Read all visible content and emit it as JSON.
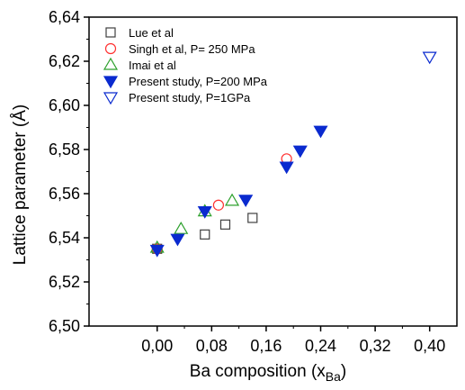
{
  "chart_data": {
    "type": "scatter",
    "xlabel": "Ba composition (x",
    "xlabel_sub": "Ba",
    "xlabel_close": ")",
    "ylabel": "Lattice parameter (Å)",
    "xlim": [
      -0.1,
      0.44
    ],
    "ylim": [
      6.5,
      6.64
    ],
    "xticks": [
      0.0,
      0.08,
      0.16,
      0.24,
      0.32,
      0.4
    ],
    "xtick_labels": [
      "0,00",
      "0,08",
      "0,16",
      "0,24",
      "0,32",
      "0,40"
    ],
    "yticks": [
      6.5,
      6.52,
      6.54,
      6.56,
      6.58,
      6.6,
      6.62,
      6.64
    ],
    "ytick_labels": [
      "6,50",
      "6,52",
      "6,54",
      "6,56",
      "6,58",
      "6,60",
      "6,62",
      "6,64"
    ],
    "grid": false,
    "legend_position": "top-left",
    "series": [
      {
        "name": "Lue et al",
        "marker": "square-open",
        "color": "#404040",
        "points": [
          [
            0.0,
            6.535
          ],
          [
            0.07,
            6.5415
          ],
          [
            0.1,
            6.546
          ],
          [
            0.14,
            6.549
          ]
        ]
      },
      {
        "name": "Singh et al, P= 250 MPa",
        "marker": "circle-open",
        "color": "#ff3030",
        "points": [
          [
            0.0,
            6.535
          ],
          [
            0.09,
            6.5548
          ],
          [
            0.19,
            6.5758
          ]
        ]
      },
      {
        "name": "Imai et al",
        "marker": "triangle-up-open",
        "color": "#2ca02c",
        "points": [
          [
            0.0,
            6.5355
          ],
          [
            0.035,
            6.544
          ],
          [
            0.07,
            6.552
          ],
          [
            0.11,
            6.5568
          ]
        ]
      },
      {
        "name": "Present study, P=200 MPa",
        "marker": "triangle-down-filled",
        "color": "#0a2acf",
        "points": [
          [
            0.0,
            6.5345
          ],
          [
            0.03,
            6.5395
          ],
          [
            0.07,
            6.552
          ],
          [
            0.13,
            6.5572
          ],
          [
            0.19,
            6.5722
          ],
          [
            0.21,
            6.5795
          ],
          [
            0.24,
            6.5885
          ]
        ]
      },
      {
        "name": "Present study, P=1GPa",
        "marker": "triangle-down-open",
        "color": "#0a2acf",
        "points": [
          [
            0.4,
            6.622
          ]
        ]
      }
    ]
  }
}
